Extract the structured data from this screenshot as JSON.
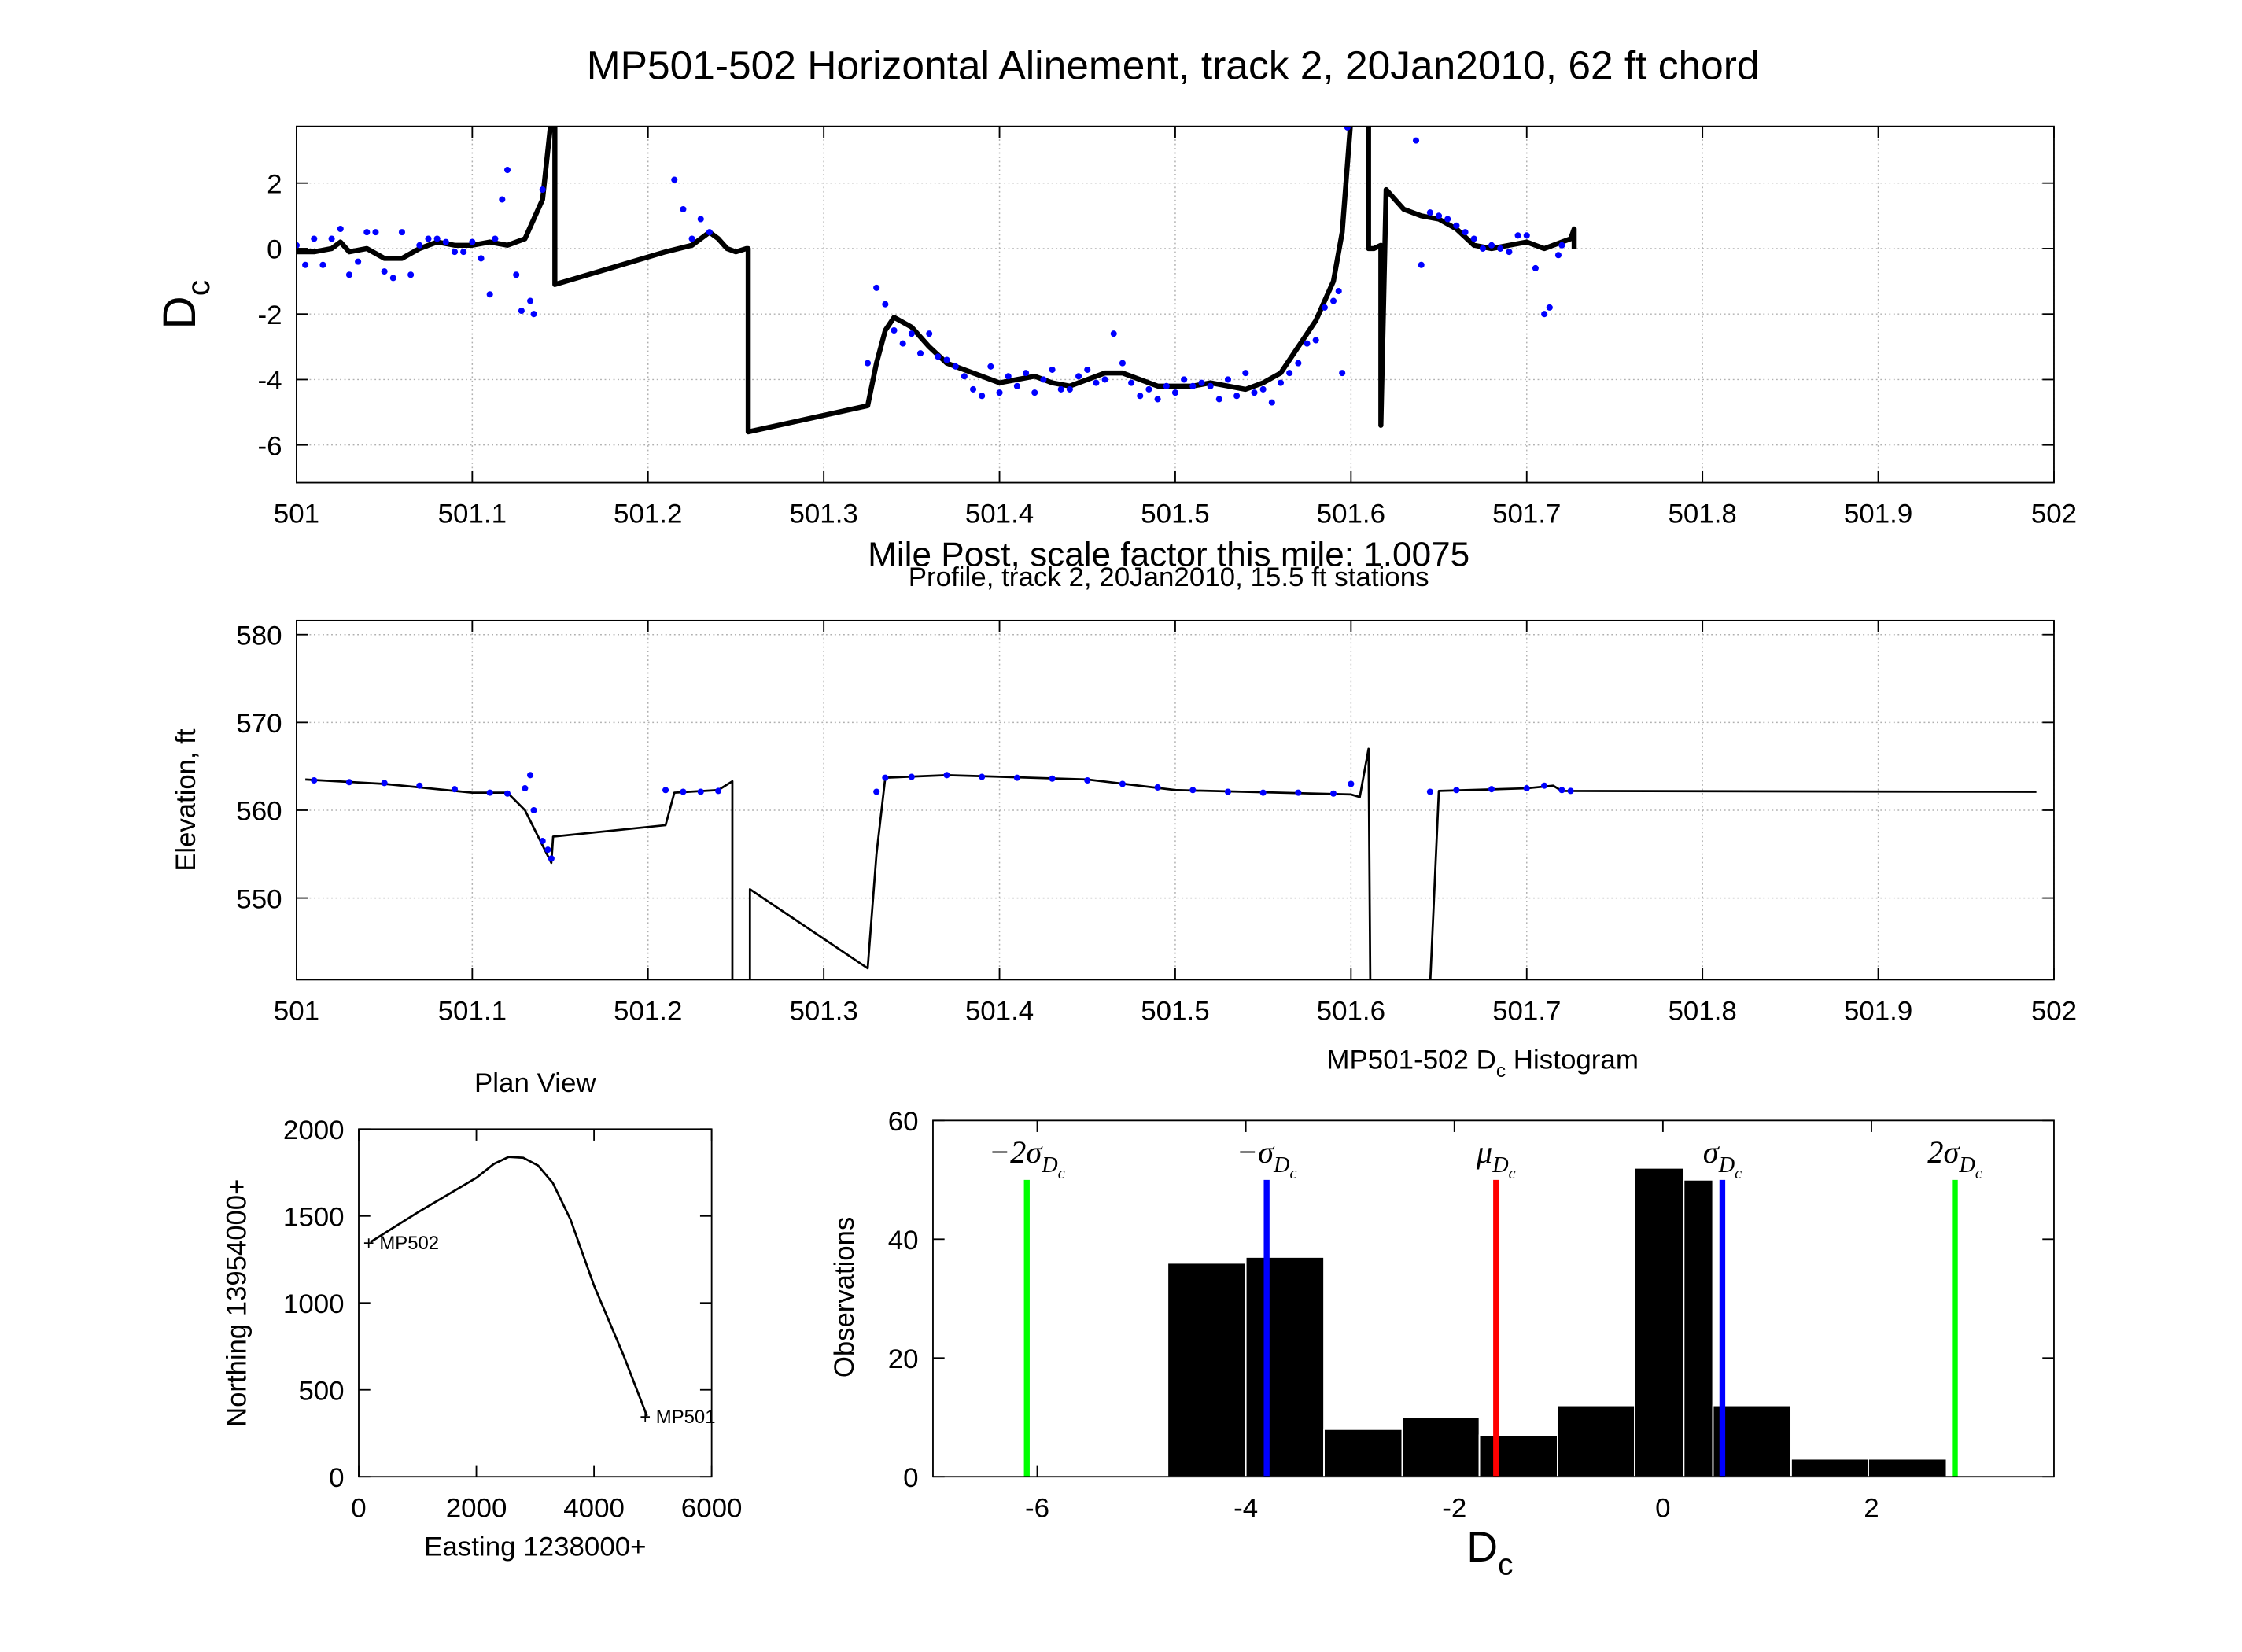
{
  "chart_data": [
    {
      "type": "line",
      "title": "MP501-502 Horizontal Alinement, track 2, 20Jan2010, 62 ft chord",
      "xlabel": "Mile Post, scale factor this mile: 1.0075",
      "ylabel": "D",
      "ylabel_sub": "c",
      "xlim": [
        501,
        502
      ],
      "xticks": [
        501,
        501.1,
        501.2,
        501.3,
        501.4,
        501.5,
        501.6,
        501.7,
        501.8,
        501.9,
        502
      ],
      "ylim": [
        -7.15,
        3.73
      ],
      "yticks": [
        -6,
        -4,
        -2,
        0,
        2
      ],
      "grid": true,
      "series": [
        {
          "mode": "line",
          "color": "#000000",
          "x": [
            501.0,
            501.01,
            501.02,
            501.025,
            501.03,
            501.04,
            501.05,
            501.06,
            501.07,
            501.08,
            501.09,
            501.1,
            501.11,
            501.12,
            501.13,
            501.14,
            501.145,
            501.147,
            501.147,
            501.21,
            501.225,
            501.235,
            501.24,
            501.245,
            501.25,
            501.256,
            501.257,
            501.257,
            501.325,
            501.33,
            501.335,
            501.34,
            501.35,
            501.36,
            501.37,
            501.38,
            501.39,
            501.4,
            501.41,
            501.42,
            501.43,
            501.44,
            501.45,
            501.46,
            501.47,
            501.48,
            501.49,
            501.5,
            501.51,
            501.52,
            501.53,
            501.54,
            501.55,
            501.56,
            501.57,
            501.58,
            501.59,
            501.595,
            501.6,
            501.61,
            501.61,
            501.613,
            501.617,
            501.617,
            501.62,
            501.63,
            501.64,
            501.65,
            501.66,
            501.67,
            501.68,
            501.69,
            501.7,
            501.71,
            501.72,
            501.725,
            501.727,
            501.727
          ],
          "values": [
            -0.1,
            -0.1,
            0.0,
            0.2,
            -0.1,
            0.0,
            -0.3,
            -0.3,
            0.0,
            0.2,
            0.1,
            0.1,
            0.2,
            0.1,
            0.3,
            1.5,
            4,
            4,
            -1.1,
            -0.1,
            0.1,
            0.5,
            0.3,
            0.0,
            -0.1,
            0.0,
            0.0,
            -5.6,
            -4.8,
            -3.5,
            -2.5,
            -2.1,
            -2.4,
            -3.0,
            -3.5,
            -3.7,
            -3.9,
            -4.1,
            -4.0,
            -3.9,
            -4.1,
            -4.2,
            -4.0,
            -3.8,
            -3.8,
            -4.0,
            -4.2,
            -4.2,
            -4.2,
            -4.1,
            -4.2,
            -4.3,
            -4.1,
            -3.8,
            -3.0,
            -2.2,
            -1.0,
            0.5,
            4,
            4,
            0.0,
            0.0,
            0.1,
            -5.4,
            1.8,
            1.2,
            1.0,
            0.9,
            0.6,
            0.1,
            0.0,
            0.1,
            0.2,
            0.0,
            0.2,
            0.3,
            0.6,
            0.0
          ]
        },
        {
          "mode": "markers",
          "color": "#0000ff",
          "x": [
            501.0,
            501.005,
            501.01,
            501.015,
            501.02,
            501.025,
            501.03,
            501.035,
            501.04,
            501.045,
            501.05,
            501.055,
            501.06,
            501.065,
            501.07,
            501.075,
            501.08,
            501.085,
            501.09,
            501.095,
            501.1,
            501.105,
            501.11,
            501.113,
            501.117,
            501.12,
            501.125,
            501.128,
            501.133,
            501.135,
            501.14,
            501.215,
            501.22,
            501.225,
            501.23,
            501.235,
            501.325,
            501.33,
            501.335,
            501.34,
            501.345,
            501.35,
            501.355,
            501.36,
            501.365,
            501.37,
            501.375,
            501.38,
            501.385,
            501.39,
            501.395,
            501.4,
            501.405,
            501.41,
            501.415,
            501.42,
            501.425,
            501.43,
            501.435,
            501.44,
            501.445,
            501.45,
            501.455,
            501.46,
            501.465,
            501.47,
            501.475,
            501.48,
            501.485,
            501.49,
            501.495,
            501.5,
            501.505,
            501.51,
            501.515,
            501.52,
            501.525,
            501.53,
            501.535,
            501.54,
            501.545,
            501.55,
            501.555,
            501.56,
            501.565,
            501.57,
            501.575,
            501.58,
            501.585,
            501.59,
            501.593,
            501.595,
            501.598,
            501.637,
            501.64,
            501.645,
            501.65,
            501.655,
            501.66,
            501.665,
            501.67,
            501.675,
            501.68,
            501.685,
            501.69,
            501.695,
            501.7,
            501.705,
            501.71,
            501.713,
            501.718,
            501.72
          ],
          "values": [
            0.1,
            -0.5,
            0.3,
            -0.5,
            0.3,
            0.6,
            -0.8,
            -0.4,
            0.5,
            0.5,
            -0.7,
            -0.9,
            0.5,
            -0.8,
            0.1,
            0.3,
            0.3,
            0.2,
            -0.1,
            -0.1,
            0.2,
            -0.3,
            -1.4,
            0.3,
            1.5,
            2.4,
            -0.8,
            -1.9,
            -1.6,
            -2.0,
            1.8,
            2.1,
            1.2,
            0.3,
            0.9,
            0.5,
            -3.5,
            -1.2,
            -1.7,
            -2.5,
            -2.9,
            -2.6,
            -3.2,
            -2.6,
            -3.3,
            -3.4,
            -3.6,
            -3.9,
            -4.3,
            -4.5,
            -3.6,
            -4.4,
            -3.9,
            -4.2,
            -3.8,
            -4.4,
            -4.0,
            -3.7,
            -4.3,
            -4.3,
            -3.9,
            -3.7,
            -4.1,
            -4.0,
            -2.6,
            -3.5,
            -4.1,
            -4.5,
            -4.3,
            -4.6,
            -4.2,
            -4.4,
            -4.0,
            -4.2,
            -4.1,
            -4.2,
            -4.6,
            -4.0,
            -4.5,
            -3.8,
            -4.4,
            -4.3,
            -4.7,
            -4.1,
            -3.8,
            -3.5,
            -2.9,
            -2.8,
            -1.8,
            -1.6,
            -1.3,
            -3.8,
            3.7,
            3.3,
            -0.5,
            1.1,
            1.0,
            0.9,
            0.7,
            0.5,
            0.3,
            0.0,
            0.1,
            0.0,
            -0.1,
            0.4,
            0.4,
            -0.6,
            -2.0,
            -1.8,
            -0.2,
            0.1
          ]
        }
      ]
    },
    {
      "type": "line",
      "title": "Profile, track 2, 20Jan2010, 15.5 ft stations",
      "ylabel": "Elevation, ft",
      "xlim": [
        501,
        502
      ],
      "xticks": [
        501,
        501.1,
        501.2,
        501.3,
        501.4,
        501.5,
        501.6,
        501.7,
        501.8,
        501.9,
        502
      ],
      "ylim": [
        540.7,
        581.6
      ],
      "yticks": [
        550,
        560,
        570,
        580
      ],
      "grid": true,
      "series": [
        {
          "mode": "line",
          "color": "#000000",
          "x": [
            501.005,
            501.05,
            501.1,
            501.12,
            501.13,
            501.14,
            501.145,
            501.146,
            501.21,
            501.215,
            501.24,
            501.248,
            501.248,
            501.258,
            501.258,
            501.325,
            501.33,
            501.335,
            501.37,
            501.45,
            501.5,
            501.6,
            501.605,
            501.61,
            501.611,
            501.645,
            501.65,
            501.7,
            501.715,
            501.72,
            501.99
          ],
          "values": [
            563.5,
            563.0,
            562.0,
            562.0,
            560.0,
            556.0,
            554.0,
            557.0,
            558.3,
            562.0,
            562.3,
            563.3,
            540,
            540,
            551.0,
            542.0,
            555.0,
            563.7,
            564.0,
            563.5,
            562.3,
            561.8,
            561.5,
            567.0,
            540,
            540,
            562.2,
            562.5,
            562.8,
            562.2,
            562.1
          ]
        },
        {
          "mode": "markers",
          "color": "#0000ff",
          "x": [
            501.01,
            501.03,
            501.05,
            501.07,
            501.09,
            501.11,
            501.12,
            501.13,
            501.133,
            501.135,
            501.14,
            501.143,
            501.145,
            501.21,
            501.22,
            501.23,
            501.24,
            501.33,
            501.335,
            501.35,
            501.37,
            501.39,
            501.41,
            501.43,
            501.45,
            501.47,
            501.49,
            501.51,
            501.53,
            501.55,
            501.57,
            501.59,
            501.6,
            501.645,
            501.66,
            501.68,
            501.7,
            501.71,
            501.72,
            501.725
          ],
          "values": [
            563.4,
            563.2,
            563.1,
            562.8,
            562.4,
            562.0,
            561.9,
            562.5,
            564.0,
            560.0,
            556.5,
            555.5,
            554.5,
            562.3,
            562.1,
            562.1,
            562.2,
            562.1,
            563.7,
            563.8,
            564.0,
            563.8,
            563.7,
            563.6,
            563.4,
            563.0,
            562.6,
            562.3,
            562.1,
            562.0,
            562.0,
            561.9,
            563.0,
            562.1,
            562.3,
            562.4,
            562.5,
            562.8,
            562.3,
            562.2
          ]
        }
      ]
    },
    {
      "type": "line",
      "title": "Plan View",
      "xlabel": "Easting 1238000+",
      "ylabel": "Northing 13954000+",
      "xlim": [
        0,
        6000
      ],
      "xticks": [
        0,
        2000,
        4000,
        6000
      ],
      "ylim": [
        0,
        2000
      ],
      "yticks": [
        0,
        500,
        1000,
        1500,
        2000
      ],
      "grid": false,
      "series": [
        {
          "mode": "line",
          "color": "#000000",
          "x": [
            200,
            1000,
            2000,
            2300,
            2550,
            2800,
            3050,
            3300,
            3600,
            4000,
            4500,
            4900
          ],
          "values": [
            1350,
            1520,
            1720,
            1800,
            1840,
            1835,
            1790,
            1690,
            1480,
            1100,
            700,
            350
          ]
        }
      ],
      "annotations": [
        {
          "text": "+ MP502",
          "x": 200,
          "y": 1350
        },
        {
          "text": "+ MP501",
          "x": 4900,
          "y": 350
        }
      ]
    },
    {
      "type": "histogram",
      "title": "MP501-502 D",
      "title_sub": "c",
      "title_end": " Histogram",
      "xlabel": "D",
      "xlabel_sub": "c",
      "ylabel": "Observations",
      "xlim": [
        -7,
        3.75
      ],
      "xticks": [
        -6,
        -4,
        -2,
        0,
        2
      ],
      "ylim": [
        0,
        60
      ],
      "yticks": [
        0,
        20,
        40,
        60
      ],
      "grid": false,
      "color": "#000000",
      "bins": [
        -4.75,
        -4.0,
        -3.25,
        -2.5,
        -1.76,
        -1.01,
        -0.27,
        0.2,
        0.48,
        1.23,
        1.97,
        2.72
      ],
      "values": [
        36,
        37,
        8,
        10,
        7,
        12,
        52,
        50,
        12,
        3,
        3
      ],
      "vlines": [
        {
          "x": -6.1,
          "height": 50,
          "color": "#00ff00",
          "label": "−2σ",
          "sub": "D",
          "subsub": "c"
        },
        {
          "x": -3.8,
          "height": 50,
          "color": "#0000ff",
          "label": "−σ",
          "sub": "D",
          "subsub": "c"
        },
        {
          "x": -1.6,
          "height": 50,
          "color": "#ff0000",
          "label": "μ",
          "sub": "D",
          "subsub": "c"
        },
        {
          "x": 0.57,
          "height": 50,
          "color": "#0000ff",
          "label": "σ",
          "sub": "D",
          "subsub": "c"
        },
        {
          "x": 2.8,
          "height": 50,
          "color": "#00ff00",
          "label": "2σ",
          "sub": "D",
          "subsub": "c"
        }
      ]
    }
  ]
}
